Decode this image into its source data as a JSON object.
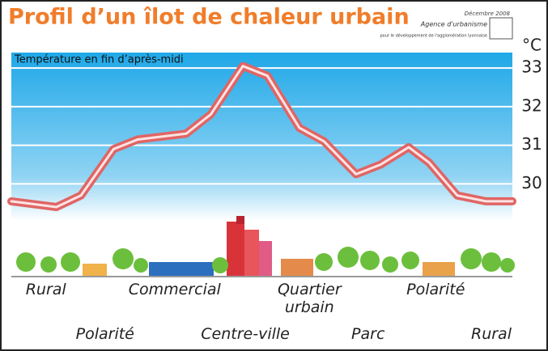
{
  "chart_data": {
    "type": "line",
    "title": "Profil d’un îlot de chaleur urbain",
    "logo": {
      "date": "Décembre 2008",
      "name": "Agence d'urbanisme",
      "subtitle": "pour le développement de l'agglomération lyonnaise"
    },
    "y_unit": "°C",
    "y_title": "Température en fin d’après-midi",
    "x": [
      0,
      9,
      13.9,
      20.4,
      25.2,
      34.9,
      39.8,
      46.2,
      51.1,
      57.5,
      62.4,
      68.8,
      73.7,
      79.3,
      83.4,
      89.0,
      94.7,
      100
    ],
    "values": [
      29.55,
      29.4,
      29.7,
      30.9,
      31.15,
      31.3,
      31.8,
      33.05,
      32.8,
      31.45,
      31.1,
      30.25,
      30.5,
      30.95,
      30.55,
      29.7,
      29.55,
      29.55
    ],
    "color": "#e06565",
    "xlim": [
      0,
      100
    ],
    "ylim": [
      27.6,
      33.4
    ],
    "yticks": [
      30,
      31,
      32,
      33
    ],
    "xticks": [
      {
        "value": 6.9,
        "label": "Rural"
      },
      {
        "value": 18.7,
        "label": "Polarité"
      },
      {
        "value": 32.6,
        "label": "Commercial"
      },
      {
        "value": 46.7,
        "label": "Centre-ville"
      },
      {
        "value": 59.5,
        "label": "Quartier urbain"
      },
      {
        "value": 71.2,
        "label": "Parc"
      },
      {
        "value": 84.7,
        "label": "Polarité"
      },
      {
        "value": 95.8,
        "label": "Rural"
      }
    ],
    "grid": true
  }
}
